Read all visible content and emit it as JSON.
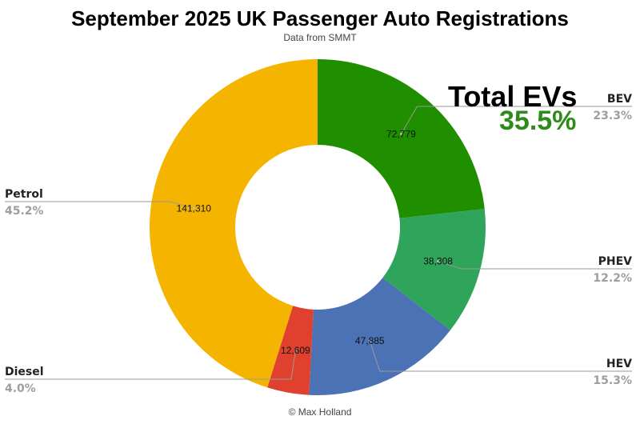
{
  "header": {
    "title": "September 2025 UK Passenger Auto Registrations",
    "subtitle": "Data from SMMT"
  },
  "callout": {
    "title": "Total EVs",
    "value": "35.5%",
    "color": "#2e8b1a"
  },
  "footer": {
    "credit": "© Max Holland"
  },
  "chart_data": {
    "type": "pie",
    "variant": "donut",
    "categories": [
      "BEV",
      "PHEV",
      "HEV",
      "Diesel",
      "Petrol"
    ],
    "values": [
      72779,
      38308,
      47885,
      12609,
      141310
    ],
    "value_labels": [
      "72,779",
      "38,308",
      "47,885",
      "12,609",
      "141,310"
    ],
    "percent_labels": [
      "23.3%",
      "12.2%",
      "15.3%",
      "4.0%",
      "45.2%"
    ],
    "colors": [
      "#1f8f00",
      "#2ea55a",
      "#4a72b5",
      "#e0402e",
      "#f5b400"
    ],
    "value_label_colors": [
      "#ffffff",
      "#ffffff",
      "#ffffff",
      "#ffffff",
      "#111111"
    ]
  }
}
